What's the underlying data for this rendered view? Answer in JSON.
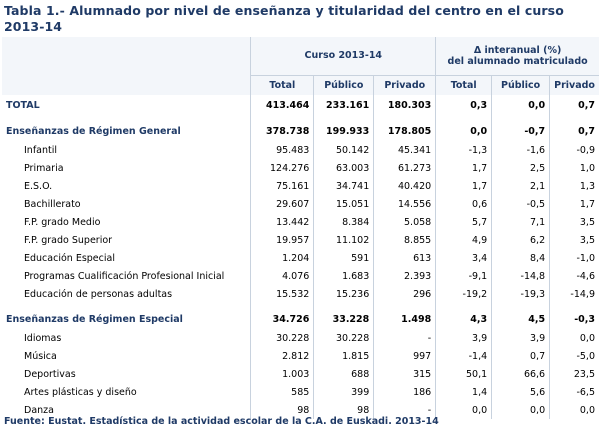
{
  "title": "Tabla 1.- Alumnado por nivel de enseñanza y titularidad del centro en el curso 2013-14",
  "header": {
    "group1": "Curso 2013-14",
    "group2_line1": "Δ interanual (%)",
    "group2_line2": "del alumnado matriculado",
    "cols": [
      "Total",
      "Público",
      "Privado",
      "Total",
      "Público",
      "Privado"
    ]
  },
  "rows": [
    {
      "label": "TOTAL",
      "values": [
        "413.464",
        "233.161",
        "180.303",
        "0,3",
        "0,0",
        "0,7"
      ]
    },
    {
      "label": "Enseñanzas de Régimen General",
      "values": [
        "378.738",
        "199.933",
        "178.805",
        "0,0",
        "-0,7",
        "0,7"
      ]
    },
    {
      "label": "Infantil",
      "values": [
        "95.483",
        "50.142",
        "45.341",
        "-1,3",
        "-1,6",
        "-0,9"
      ]
    },
    {
      "label": "Primaria",
      "values": [
        "124.276",
        "63.003",
        "61.273",
        "1,7",
        "2,5",
        "1,0"
      ]
    },
    {
      "label": "E.S.O.",
      "values": [
        "75.161",
        "34.741",
        "40.420",
        "1,7",
        "2,1",
        "1,3"
      ]
    },
    {
      "label": "Bachillerato",
      "values": [
        "29.607",
        "15.051",
        "14.556",
        "0,6",
        "-0,5",
        "1,7"
      ]
    },
    {
      "label": "F.P. grado Medio",
      "values": [
        "13.442",
        "8.384",
        "5.058",
        "5,7",
        "7,1",
        "3,5"
      ]
    },
    {
      "label": "F.P. grado Superior",
      "values": [
        "19.957",
        "11.102",
        "8.855",
        "4,9",
        "6,2",
        "3,5"
      ]
    },
    {
      "label": "Educación Especial",
      "values": [
        "1.204",
        "591",
        "613",
        "3,4",
        "8,4",
        "-1,0"
      ]
    },
    {
      "label": "Programas Cualificación Profesional Inicial",
      "values": [
        "4.076",
        "1.683",
        "2.393",
        "-9,1",
        "-14,8",
        "-4,6"
      ]
    },
    {
      "label": "Educación de personas adultas",
      "values": [
        "15.532",
        "15.236",
        "296",
        "-19,2",
        "-19,3",
        "-14,9"
      ]
    },
    {
      "label": "Enseñanzas de Régimen Especial",
      "values": [
        "34.726",
        "33.228",
        "1.498",
        "4,3",
        "4,5",
        "-0,3"
      ]
    },
    {
      "label": "Idiomas",
      "values": [
        "30.228",
        "30.228",
        "-",
        "3,9",
        "3,9",
        "0,0"
      ]
    },
    {
      "label": "Música",
      "values": [
        "2.812",
        "1.815",
        "997",
        "-1,4",
        "0,7",
        "-5,0"
      ]
    },
    {
      "label": "Deportivas",
      "values": [
        "1.003",
        "688",
        "315",
        "50,1",
        "66,6",
        "23,5"
      ]
    },
    {
      "label": "Artes plásticas y diseño",
      "values": [
        "585",
        "399",
        "186",
        "1,4",
        "5,6",
        "-6,5"
      ]
    },
    {
      "label": "Danza",
      "values": [
        "98",
        "98",
        "-",
        "0,0",
        "0,0",
        "0,0"
      ]
    }
  ],
  "source": "Fuente: Eustat. Estadística de la actividad escolar de la C.A. de Euskadi. 2013-14"
}
